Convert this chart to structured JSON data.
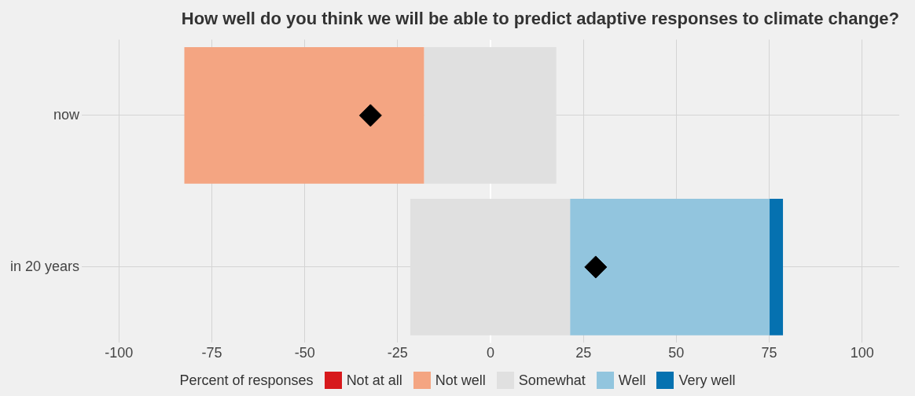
{
  "chart_data": {
    "type": "bar",
    "orientation": "horizontal",
    "title": "How well do you think we will be able to predict adaptive responses to climate change?",
    "categories": [
      "now",
      "in 20 years"
    ],
    "series": [
      {
        "name": "Not at all",
        "color": "#d7191c",
        "values": [
          0,
          0
        ]
      },
      {
        "name": "Not well",
        "color": "#f4a582",
        "values": [
          64.5,
          null
        ],
        "base": [
          -82.4,
          null
        ]
      },
      {
        "name": "Somewhat",
        "color": "#e0e0e0",
        "values": [
          35.6,
          43
        ],
        "base": [
          -17.9,
          -21.6
        ]
      },
      {
        "name": "Well",
        "color": "#92c5de",
        "values": [
          null,
          53.7
        ],
        "base": [
          null,
          21.4
        ]
      },
      {
        "name": "Very well",
        "color": "#0571b0",
        "values": [
          null,
          3.6
        ],
        "base": [
          null,
          75.1
        ]
      },
      {
        "type": "scatter",
        "color": "#000000",
        "marker": "diamond",
        "values": [
          -32.3,
          28.3
        ]
      }
    ],
    "xlim": [
      -110,
      110
    ],
    "xticks": [
      -100,
      -75,
      -50,
      -25,
      0,
      25,
      50,
      75,
      100
    ],
    "grid": true,
    "legend": "bottom",
    "legend_title": "Percent of responses",
    "ref_lines": [
      {
        "axis": "x",
        "value": 0,
        "color": "#ffffff"
      }
    ]
  }
}
